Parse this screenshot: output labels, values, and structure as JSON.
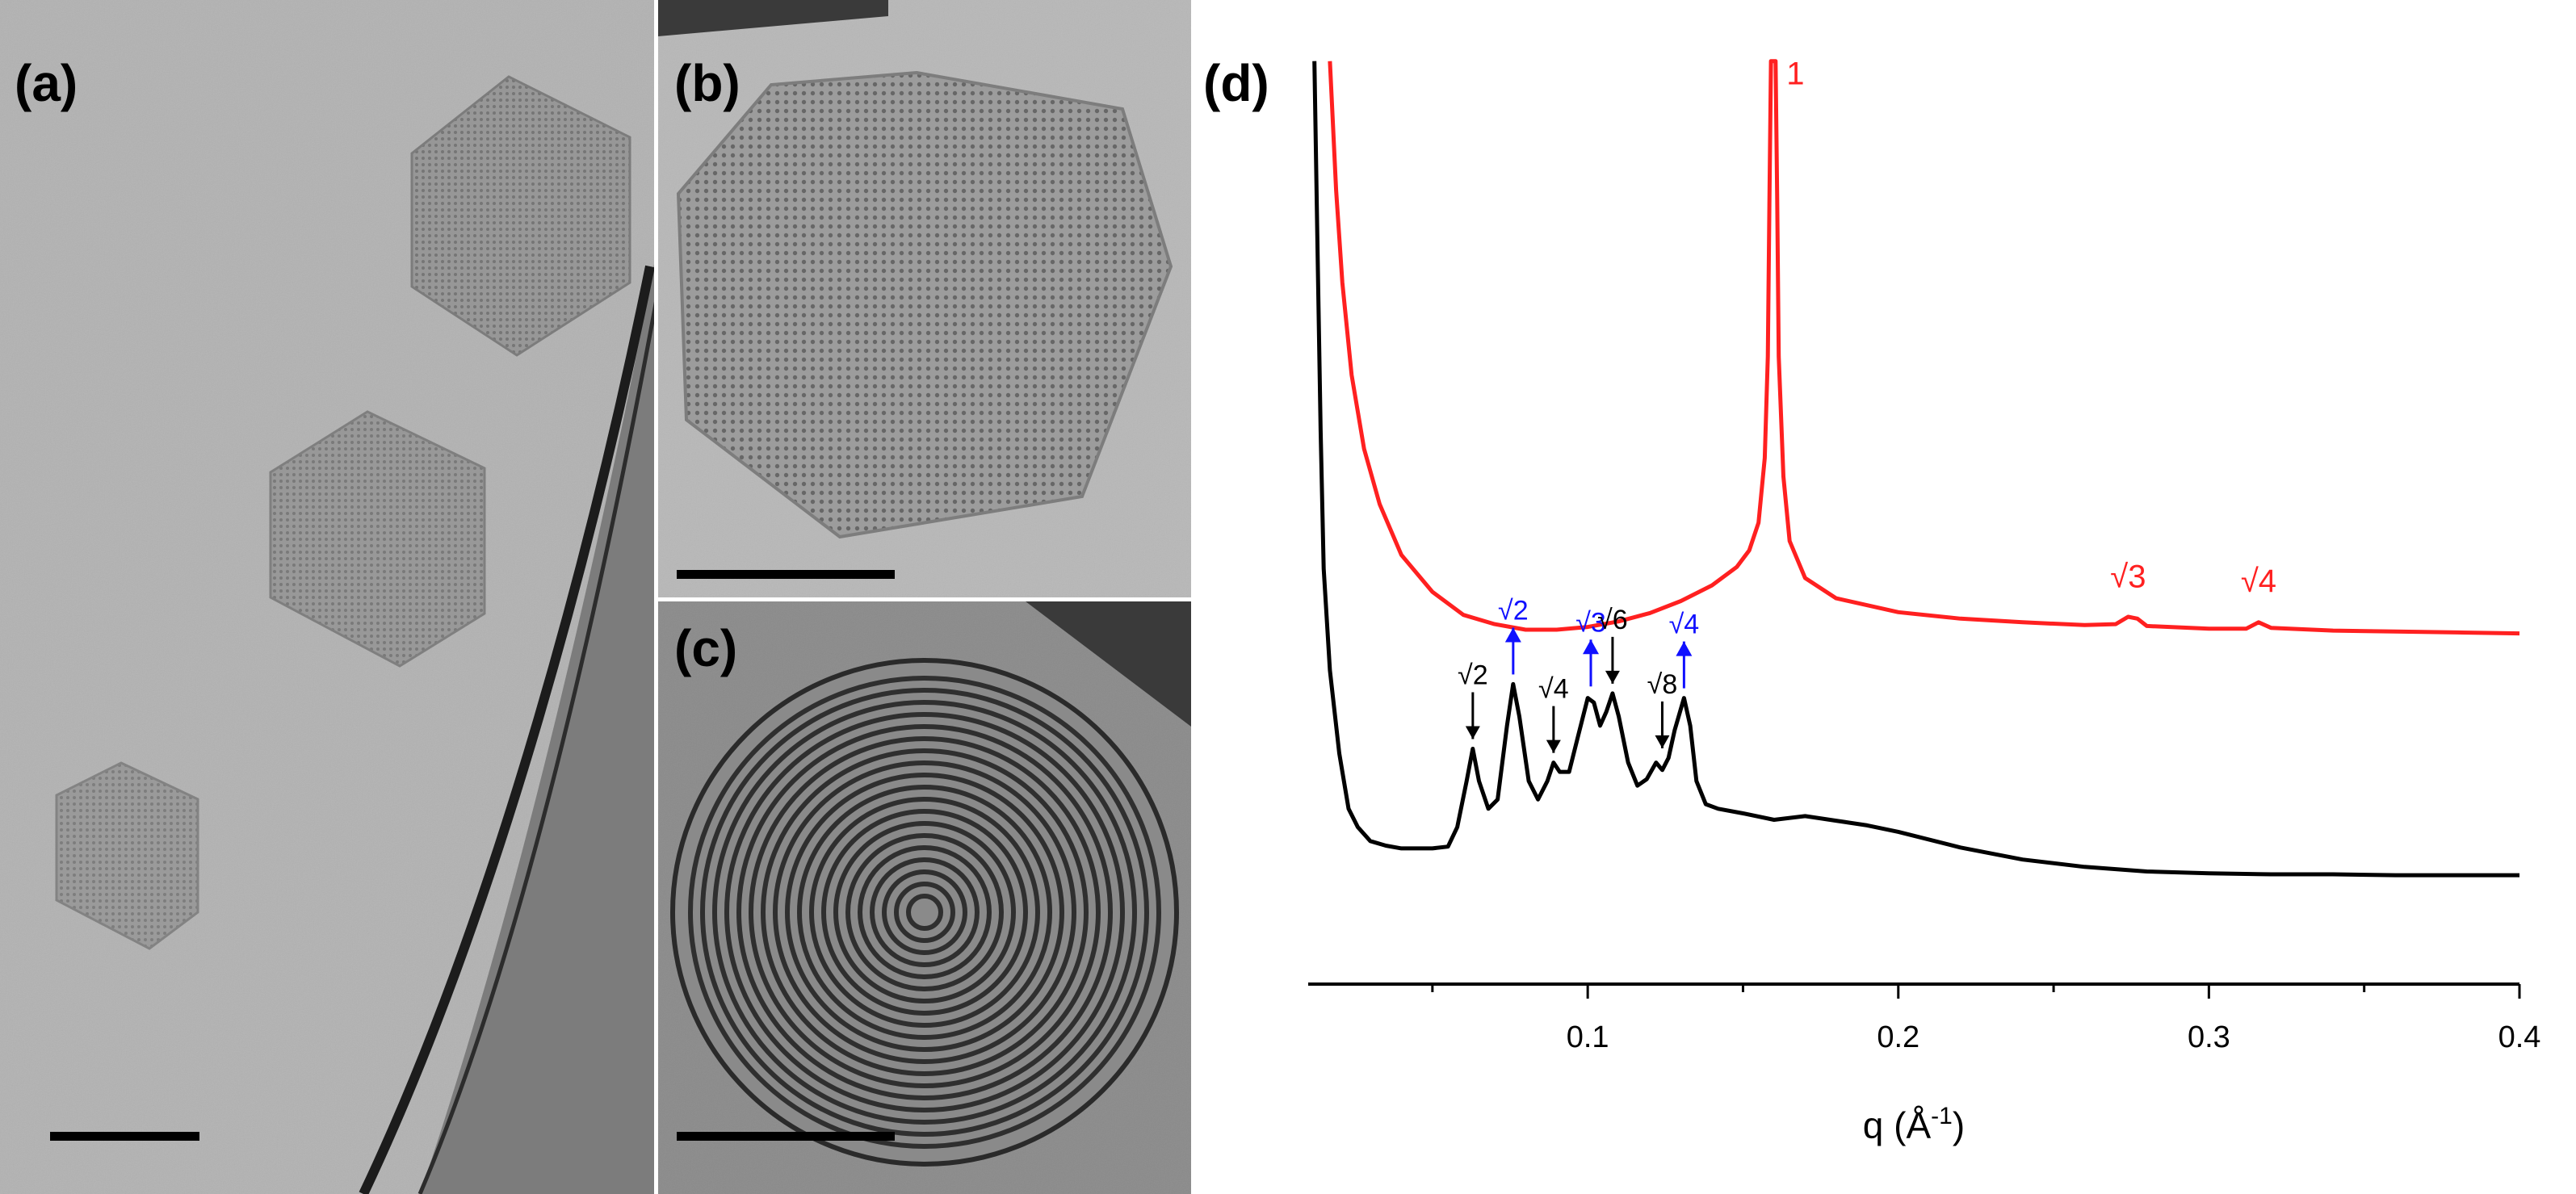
{
  "panels": {
    "a": {
      "label": "(a)"
    },
    "b": {
      "label": "(b)"
    },
    "c": {
      "label": "(c)"
    },
    "d": {
      "label": "(d)"
    }
  },
  "chart_data": {
    "type": "line",
    "xlabel_base": "q (Å",
    "xlabel_exp": "-1",
    "xlabel_close": ")",
    "xlim": [
      0.01,
      0.4
    ],
    "x_ticks": [
      0.1,
      0.2,
      0.3,
      0.4
    ],
    "x_tick_labels": [
      "0.1",
      "0.2",
      "0.3",
      "0.4"
    ],
    "grid": false,
    "y_axis_visible": false,
    "colors": {
      "upper": "#ff2020",
      "lower": "#000000",
      "arrow_blue": "#1010ff"
    },
    "series": [
      {
        "color": "#ff2020",
        "points": [
          [
            0.017,
            1.0
          ],
          [
            0.019,
            0.86
          ],
          [
            0.021,
            0.76
          ],
          [
            0.024,
            0.66
          ],
          [
            0.028,
            0.58
          ],
          [
            0.033,
            0.52
          ],
          [
            0.04,
            0.465
          ],
          [
            0.05,
            0.425
          ],
          [
            0.06,
            0.4
          ],
          [
            0.07,
            0.39
          ],
          [
            0.08,
            0.384
          ],
          [
            0.09,
            0.384
          ],
          [
            0.1,
            0.387
          ],
          [
            0.11,
            0.393
          ],
          [
            0.12,
            0.402
          ],
          [
            0.13,
            0.415
          ],
          [
            0.14,
            0.432
          ],
          [
            0.148,
            0.452
          ],
          [
            0.152,
            0.47
          ],
          [
            0.155,
            0.5
          ],
          [
            0.157,
            0.57
          ],
          [
            0.158,
            0.68
          ],
          [
            0.1585,
            0.85
          ],
          [
            0.159,
            1.0
          ],
          [
            0.1605,
            1.0
          ],
          [
            0.161,
            0.85
          ],
          [
            0.1615,
            0.68
          ],
          [
            0.163,
            0.55
          ],
          [
            0.165,
            0.48
          ],
          [
            0.17,
            0.44
          ],
          [
            0.18,
            0.418
          ],
          [
            0.2,
            0.403
          ],
          [
            0.22,
            0.396
          ],
          [
            0.24,
            0.392
          ],
          [
            0.26,
            0.389
          ],
          [
            0.27,
            0.39
          ],
          [
            0.274,
            0.398
          ],
          [
            0.277,
            0.396
          ],
          [
            0.28,
            0.388
          ],
          [
            0.3,
            0.385
          ],
          [
            0.312,
            0.385
          ],
          [
            0.316,
            0.392
          ],
          [
            0.32,
            0.386
          ],
          [
            0.34,
            0.383
          ],
          [
            0.36,
            0.382
          ],
          [
            0.38,
            0.381
          ],
          [
            0.4,
            0.38
          ]
        ]
      },
      {
        "color": "#000000",
        "points": [
          [
            0.012,
            1.0
          ],
          [
            0.013,
            0.8
          ],
          [
            0.014,
            0.6
          ],
          [
            0.015,
            0.45
          ],
          [
            0.017,
            0.34
          ],
          [
            0.02,
            0.25
          ],
          [
            0.023,
            0.19
          ],
          [
            0.026,
            0.17
          ],
          [
            0.03,
            0.155
          ],
          [
            0.035,
            0.15
          ],
          [
            0.04,
            0.147
          ],
          [
            0.05,
            0.147
          ],
          [
            0.055,
            0.149
          ],
          [
            0.058,
            0.17
          ],
          [
            0.061,
            0.22
          ],
          [
            0.063,
            0.255
          ],
          [
            0.065,
            0.22
          ],
          [
            0.068,
            0.19
          ],
          [
            0.071,
            0.2
          ],
          [
            0.074,
            0.28
          ],
          [
            0.076,
            0.325
          ],
          [
            0.078,
            0.29
          ],
          [
            0.081,
            0.22
          ],
          [
            0.084,
            0.2
          ],
          [
            0.087,
            0.22
          ],
          [
            0.089,
            0.24
          ],
          [
            0.091,
            0.23
          ],
          [
            0.094,
            0.23
          ],
          [
            0.097,
            0.27
          ],
          [
            0.1,
            0.31
          ],
          [
            0.102,
            0.305
          ],
          [
            0.104,
            0.28
          ],
          [
            0.106,
            0.295
          ],
          [
            0.108,
            0.315
          ],
          [
            0.11,
            0.29
          ],
          [
            0.113,
            0.24
          ],
          [
            0.116,
            0.215
          ],
          [
            0.119,
            0.222
          ],
          [
            0.122,
            0.24
          ],
          [
            0.124,
            0.232
          ],
          [
            0.126,
            0.245
          ],
          [
            0.128,
            0.275
          ],
          [
            0.131,
            0.31
          ],
          [
            0.133,
            0.28
          ],
          [
            0.135,
            0.22
          ],
          [
            0.138,
            0.195
          ],
          [
            0.142,
            0.19
          ],
          [
            0.15,
            0.185
          ],
          [
            0.16,
            0.178
          ],
          [
            0.17,
            0.182
          ],
          [
            0.18,
            0.177
          ],
          [
            0.19,
            0.172
          ],
          [
            0.2,
            0.165
          ],
          [
            0.22,
            0.148
          ],
          [
            0.24,
            0.135
          ],
          [
            0.26,
            0.127
          ],
          [
            0.28,
            0.122
          ],
          [
            0.3,
            0.12
          ],
          [
            0.32,
            0.119
          ],
          [
            0.34,
            0.119
          ],
          [
            0.36,
            0.118
          ],
          [
            0.38,
            0.118
          ],
          [
            0.4,
            0.118
          ]
        ]
      }
    ],
    "annotations": [
      {
        "text": "1",
        "x": 0.164,
        "y": 0.975,
        "color": "#ff2020"
      },
      {
        "text": "√3",
        "x": 0.274,
        "y": 0.43,
        "color": "#ff2020"
      },
      {
        "text": "√4",
        "x": 0.316,
        "y": 0.425,
        "color": "#ff2020"
      }
    ],
    "arrows": [
      {
        "text": "√2",
        "x": 0.063,
        "y": 0.255,
        "dir": "down",
        "color": "#000000"
      },
      {
        "text": "√2",
        "x": 0.076,
        "y": 0.325,
        "dir": "up",
        "color": "#1010ff"
      },
      {
        "text": "√4",
        "x": 0.089,
        "y": 0.24,
        "dir": "down",
        "color": "#000000"
      },
      {
        "text": "√3",
        "x": 0.101,
        "y": 0.312,
        "dir": "up",
        "color": "#1010ff"
      },
      {
        "text": "√6",
        "x": 0.108,
        "y": 0.315,
        "dir": "down",
        "color": "#000000"
      },
      {
        "text": "√8",
        "x": 0.124,
        "y": 0.245,
        "dir": "down",
        "color": "#000000"
      },
      {
        "text": "√4",
        "x": 0.131,
        "y": 0.31,
        "dir": "up",
        "color": "#1010ff"
      }
    ]
  }
}
